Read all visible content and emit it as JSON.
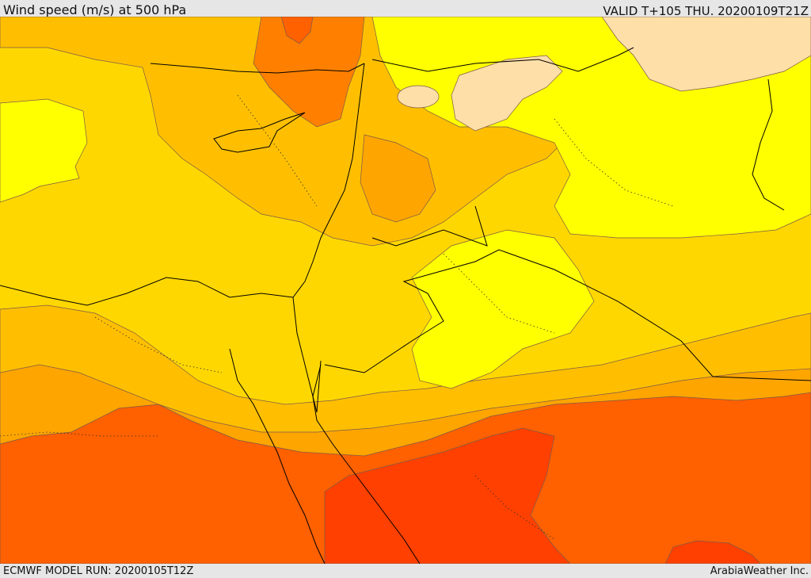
{
  "header": {
    "title": "Wind speed (m/s) at 500 hPa",
    "valid": "VALID T+105 THU. 20200109T21Z"
  },
  "footer": {
    "model_run": "ECMWF MODEL RUN: 20200105T12Z",
    "credit": "ArabiaWeather Inc."
  },
  "colors": {
    "band_lightest": "#ffdfa8",
    "band_yellow": "#ffff00",
    "band_gold": "#ffd700",
    "band_amber": "#ffbf00",
    "band_orange": "#ffa500",
    "band_dark_orange": "#ff8000",
    "band_red_orange": "#ff6000",
    "band_red": "#ff4000",
    "coastline": "#000000"
  }
}
